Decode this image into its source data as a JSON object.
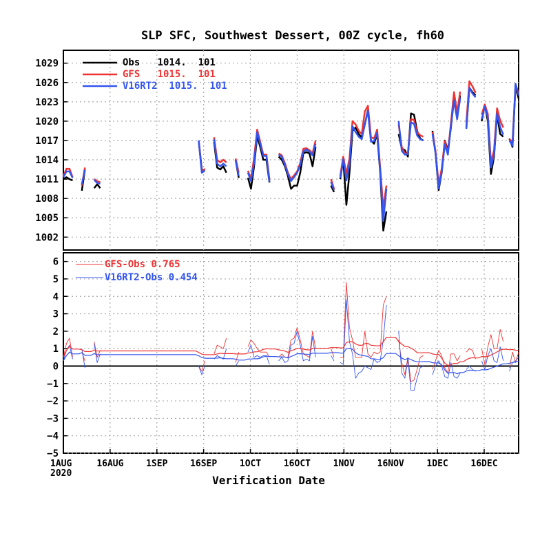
{
  "chart_data": [
    {
      "type": "line",
      "title": "SLP SFC, Southwest Dessert, 00Z cycle, fh60",
      "ylim": [
        1000,
        1031
      ],
      "yticks": [
        "1002",
        "1005",
        "1008",
        "1011",
        "1014",
        "1017",
        "1020",
        "1023",
        "1026",
        "1029"
      ],
      "grid": true,
      "legend_position": "top-left",
      "series": [
        {
          "name": "Obs",
          "label": "Obs   1014.  101",
          "color": "#000000",
          "values": [
            1011,
            1011.3,
            1011,
            1010.8,
            null,
            null,
            1009.2,
            1012.5,
            null,
            null,
            1009.6,
            1010.2,
            1009.6,
            null,
            null,
            null,
            null,
            null,
            null,
            null,
            null,
            null,
            null,
            null,
            null,
            null,
            null,
            null,
            null,
            null,
            null,
            null,
            null,
            null,
            null,
            null,
            null,
            null,
            null,
            null,
            null,
            null,
            null,
            null,
            1017,
            1012.5,
            1012.3,
            null,
            null,
            1016.8,
            1012.8,
            1012.5,
            1013,
            1012,
            null,
            null,
            1014,
            1011.2,
            null,
            null,
            1011.2,
            1009.5,
            1013,
            1017.7,
            1016,
            1014,
            1014,
            1010.5,
            null,
            null,
            1014.5,
            1014,
            1013,
            1011.5,
            1009.5,
            1010,
            1010,
            1012,
            1015,
            1015.2,
            1015,
            1013,
            1016,
            null,
            null,
            null,
            null,
            1010,
            1009,
            null,
            1011,
            1014,
            1007,
            1012,
            1018.5,
            1019,
            1018,
            1017.5,
            1019.5,
            1021.7,
            1017,
            1016.5,
            1018,
            1012,
            1003,
            1006,
            null,
            null,
            null,
            1018,
            1015.8,
            1015.5,
            1014.5,
            1021.2,
            1021,
            1018.5,
            1017.3,
            1017,
            null,
            null,
            1018.5,
            1015,
            1009.3,
            1012,
            1017,
            1015.5,
            1019,
            1023.8,
            1021,
            1024,
            null,
            1019,
            1025.2,
            1024.5,
            1024,
            null,
            1020,
            1022.5,
            1020,
            1011.8,
            1014.5,
            1021,
            1018,
            1017.6,
            null,
            1017.3,
            1016,
            1025.5,
            1023.5
          ]
        },
        {
          "name": "GFS",
          "label": "GFS   1015.  101",
          "color": "#ee3333",
          "values": [
            1011.5,
            1012.6,
            1012.6,
            1011.3,
            null,
            null,
            1010,
            1012.8,
            null,
            null,
            1011,
            1010.7,
            1010.5,
            null,
            null,
            null,
            null,
            null,
            null,
            null,
            null,
            null,
            null,
            null,
            null,
            null,
            null,
            null,
            null,
            null,
            null,
            null,
            null,
            null,
            null,
            null,
            null,
            null,
            null,
            null,
            null,
            null,
            null,
            null,
            1017,
            1012.2,
            1012.6,
            null,
            null,
            1017.5,
            1014,
            1013.6,
            1014,
            1013.6,
            null,
            null,
            1014.2,
            1012,
            null,
            null,
            1012.3,
            1011,
            1014.3,
            1018.7,
            1016.8,
            1014.8,
            1014.8,
            1011,
            null,
            null,
            1015,
            1014.7,
            1013.5,
            1012,
            1011,
            1011.6,
            1012.2,
            1013.5,
            1015.7,
            1015.8,
            1015.5,
            1015,
            1017,
            null,
            null,
            null,
            null,
            1011,
            1009.5,
            null,
            1011.5,
            1014.5,
            1011.8,
            1014.2,
            1020,
            1019.5,
            1018.5,
            1018,
            1021.5,
            1022.4,
            1017.5,
            1017.3,
            1018.7,
            1012.8,
            1006.5,
            1010,
            null,
            null,
            null,
            1019.5,
            1016,
            1015,
            1015,
            1020.3,
            1020.2,
            1018.3,
            1017.8,
            1017.6,
            null,
            null,
            1018.3,
            1015.3,
            1010.2,
            1012.6,
            1016.9,
            1015.1,
            1019.7,
            1024.5,
            1021.3,
            1024.6,
            null,
            1019.8,
            1026.2,
            1025.4,
            1024.4,
            null,
            1021,
            1022.6,
            1021.1,
            1013.6,
            1015.5,
            1022,
            1020.1,
            1019,
            null,
            1017.2,
            1016.8,
            1025.7,
            1024.3
          ]
        },
        {
          "name": "V16RT2",
          "label": "V16RT2  1015.  101",
          "color": "#3355ee",
          "values": [
            1011.3,
            1012.2,
            1012.2,
            1011.2,
            null,
            null,
            1010.2,
            1012.4,
            null,
            null,
            1010.9,
            1010.4,
            1010.3,
            null,
            null,
            null,
            null,
            null,
            null,
            null,
            null,
            null,
            null,
            null,
            null,
            null,
            null,
            null,
            null,
            null,
            null,
            null,
            null,
            null,
            null,
            null,
            null,
            null,
            null,
            null,
            null,
            null,
            null,
            null,
            1017,
            1012,
            1012.3,
            null,
            null,
            1017.2,
            1013.4,
            1013,
            1013.4,
            1013,
            null,
            null,
            1014,
            1011.5,
            null,
            null,
            1012,
            1010.7,
            1013.5,
            1018.3,
            1016.5,
            1014.6,
            1014.6,
            1010.6,
            null,
            null,
            1014.8,
            1014.5,
            1013.2,
            1011.8,
            1010.7,
            1011.3,
            1012,
            1013.2,
            1015.3,
            1015.6,
            1015.3,
            1014.7,
            1016.5,
            null,
            null,
            null,
            null,
            1010.6,
            1009.3,
            null,
            1011.2,
            1014.1,
            1010.8,
            1013.4,
            1019.2,
            1018.3,
            1017.6,
            1017.2,
            1019.5,
            1021.6,
            1016.8,
            1016.9,
            1018.2,
            1012.3,
            1004.5,
            1009.5,
            null,
            null,
            null,
            1020,
            1015.4,
            1014.8,
            1014.9,
            1019.8,
            1019.6,
            1017.8,
            1017.2,
            1017,
            null,
            null,
            1018,
            1015,
            1009.6,
            1012,
            1016.4,
            1014.8,
            1019.2,
            1023.2,
            1020.3,
            1023.6,
            null,
            1018.8,
            1025.2,
            1024.3,
            1023.7,
            null,
            1020.3,
            1022.3,
            1020.6,
            1012.8,
            1014.8,
            1021.2,
            1019.1,
            1017.9,
            null,
            1017,
            1016.2,
            1025.8,
            1024
          ]
        }
      ]
    },
    {
      "type": "line",
      "ylim": [
        -5,
        6.5
      ],
      "yticks": [
        "-5",
        "-4",
        "-3",
        "-2",
        "-1",
        "0",
        "1",
        "2",
        "3",
        "4",
        "5",
        "6"
      ],
      "xlabel": "Verification Date",
      "xticks": [
        "1AUG",
        "16AUG",
        "1SEP",
        "16SEP",
        "1OCT",
        "16OCT",
        "1NOV",
        "16NOV",
        "1DEC",
        "16DEC"
      ],
      "xticks_year": "2020",
      "grid": true,
      "legend_position": "top-left",
      "series": [
        {
          "name": "GFS-Obs",
          "label": "GFS-Obs 0.765",
          "color": "#ee3333",
          "values": [
            0.5,
            1.3,
            1.6,
            0.5,
            null,
            null,
            0.8,
            0.3,
            null,
            null,
            1.4,
            0.5,
            0.9,
            null,
            null,
            null,
            null,
            null,
            null,
            null,
            null,
            null,
            null,
            null,
            null,
            null,
            null,
            null,
            null,
            null,
            null,
            null,
            null,
            null,
            null,
            null,
            null,
            null,
            null,
            null,
            null,
            null,
            null,
            null,
            0,
            -0.3,
            0.3,
            null,
            null,
            0.7,
            1.2,
            1.1,
            1,
            1.6,
            null,
            null,
            0.2,
            0.8,
            null,
            null,
            1.1,
            1.5,
            1.3,
            1,
            0.8,
            0.8,
            0.8,
            0.5,
            null,
            null,
            0.5,
            0.7,
            0.5,
            0.5,
            1.5,
            1.6,
            2.2,
            1.5,
            0.7,
            0.6,
            0.5,
            2,
            1,
            null,
            null,
            null,
            null,
            1,
            0.5,
            null,
            0.5,
            0.5,
            4.8,
            2.2,
            1.5,
            0.5,
            0.5,
            0.5,
            2,
            0.7,
            0.5,
            0.8,
            0.7,
            0.8,
            3.5,
            4,
            null,
            null,
            null,
            1.5,
            0.2,
            -0.5,
            0.5,
            -0.9,
            -0.8,
            -0.2,
            0.5,
            0.6,
            null,
            null,
            -0.2,
            0.3,
            0.9,
            0.6,
            -0.1,
            -0.4,
            0.7,
            0.7,
            0.3,
            0.6,
            null,
            0.8,
            1,
            0.9,
            0.4,
            null,
            1,
            0.1,
            1.1,
            1.8,
            1,
            1,
            2.1,
            1.4,
            null,
            -0.1,
            0.8,
            0.2,
            0.8
          ]
        },
        {
          "name": "V16RT2-Obs",
          "label": "V16RT2-Obs 0.454",
          "color": "#3355ee",
          "values": [
            0.3,
            0.9,
            1.2,
            0.4,
            null,
            null,
            1,
            -0.1,
            null,
            null,
            1.3,
            0.2,
            0.7,
            null,
            null,
            null,
            null,
            null,
            null,
            null,
            null,
            null,
            null,
            null,
            null,
            null,
            null,
            null,
            null,
            null,
            null,
            null,
            null,
            null,
            null,
            null,
            null,
            null,
            null,
            null,
            null,
            null,
            null,
            null,
            0,
            -0.5,
            0,
            null,
            null,
            0.4,
            0.6,
            0.5,
            0.4,
            1,
            null,
            null,
            0,
            0.3,
            null,
            null,
            0.8,
            1.2,
            0.5,
            0.6,
            0.5,
            0.6,
            0.6,
            0.1,
            null,
            null,
            0.3,
            0.5,
            0.2,
            0.3,
            1.2,
            1.3,
            2,
            1.2,
            0.3,
            0.4,
            0.3,
            1.7,
            0.5,
            null,
            null,
            null,
            null,
            0.6,
            0.3,
            null,
            0.2,
            0.1,
            3.8,
            1.4,
            0.7,
            -0.7,
            -0.4,
            -0.3,
            0,
            -0.1,
            -0.2,
            0.4,
            0.2,
            0.3,
            1.5,
            3.5,
            null,
            null,
            null,
            2,
            -0.4,
            -0.7,
            0.4,
            -1.4,
            -1.4,
            -0.7,
            -0.1,
            0,
            null,
            null,
            -0.5,
            0,
            0.3,
            0,
            -0.6,
            -0.7,
            0.2,
            -0.6,
            -0.7,
            -0.4,
            null,
            -0.2,
            0,
            -0.2,
            -0.3,
            null,
            0.3,
            -0.2,
            0.6,
            1,
            0.3,
            0.2,
            1.1,
            0.3,
            null,
            -0.3,
            0.2,
            0.3,
            0.5
          ]
        }
      ]
    }
  ]
}
